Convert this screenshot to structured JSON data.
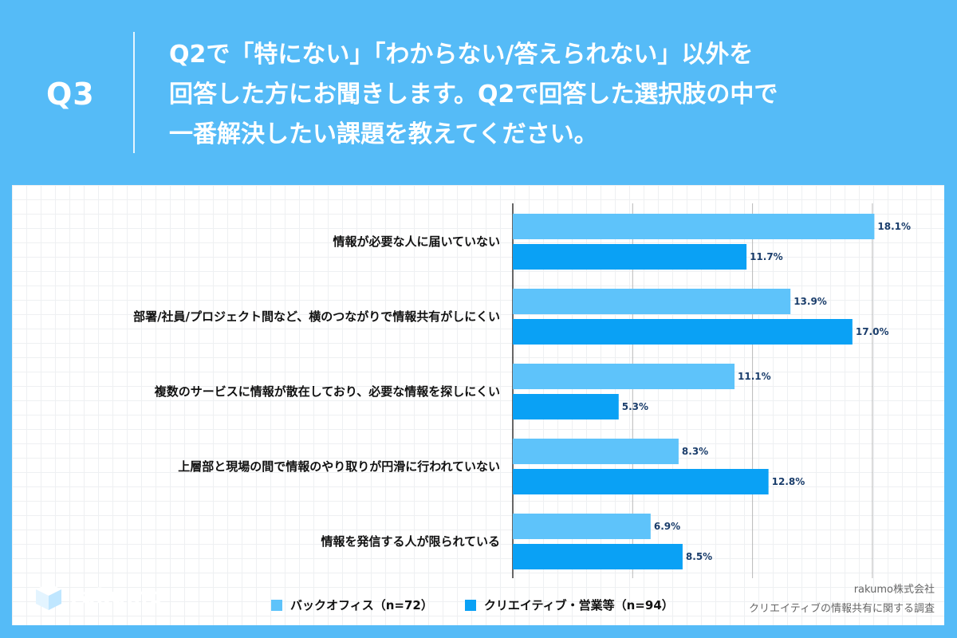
{
  "question": {
    "label": "Q3",
    "lines": [
      "Q2で「特にない」「わからない/答えられない」以外を",
      "回答した方にお聞きします。Q2で回答した選択肢の中で",
      "一番解決したい課題を教えてください。"
    ]
  },
  "brand": {
    "logo_text": "rakumo",
    "logo_icon": "cube-icon"
  },
  "credit": {
    "company": "rakumo株式会社",
    "survey": "クリエイティブの情報共有に関する調査"
  },
  "colors": {
    "background": "#55bbf7",
    "series1": "#5ec3fa",
    "series2": "#0aa1f5"
  },
  "chart_data": {
    "type": "bar",
    "orientation": "horizontal",
    "unit": "%",
    "xlim": [
      0,
      30
    ],
    "grid": true,
    "legend_position": "bottom",
    "categories": [
      "情報が必要な人に届いていない",
      "部署/社員/プロジェクト間など、横のつながりで情報共有がしにくい",
      "複数のサービスに情報が散在しており、必要な情報を探しにくい",
      "上層部と現場の間で情報のやり取りが円滑に行われていない",
      "情報を発信する人が限られている"
    ],
    "series": [
      {
        "name": "バックオフィス（n=72）",
        "values": [
          18.1,
          13.9,
          11.1,
          8.3,
          6.9
        ],
        "labels": [
          "18.1%",
          "13.9%",
          "11.1%",
          "8.3%",
          "6.9%"
        ]
      },
      {
        "name": "クリエイティブ・営業等（n=94）",
        "values": [
          11.7,
          17.0,
          5.3,
          12.8,
          8.5
        ],
        "labels": [
          "11.7%",
          "17.0%",
          "5.3%",
          "12.8%",
          "8.5%"
        ]
      }
    ]
  }
}
